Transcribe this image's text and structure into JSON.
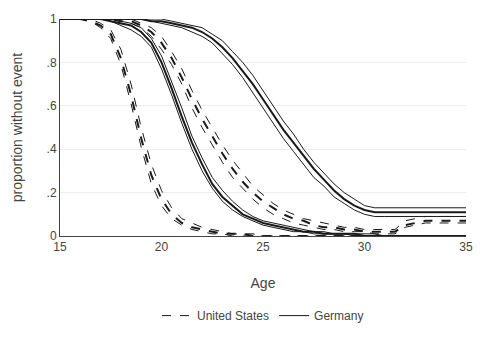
{
  "chart_data": {
    "type": "line",
    "xlabel": "Age",
    "ylabel": "proportion without event",
    "x": [
      15,
      15.5,
      16,
      16.5,
      17,
      17.5,
      18,
      18.5,
      19,
      19.5,
      20,
      20.5,
      21,
      21.5,
      22,
      22.5,
      23,
      23.5,
      24,
      24.5,
      25,
      25.5,
      26,
      26.5,
      27,
      27.5,
      28,
      28.5,
      29,
      29.5,
      30,
      30.5,
      31,
      31.5,
      32,
      32.5,
      33,
      33.5,
      34,
      34.5,
      35
    ],
    "series": [
      {
        "name": "United States",
        "color": "#1a1a1a",
        "line_style": "dashed",
        "values": [
          1.0,
          1.0,
          1.0,
          1.0,
          0.98,
          0.95,
          0.86,
          0.7,
          0.5,
          0.33,
          0.21,
          0.13,
          0.08,
          0.06,
          0.04,
          0.03,
          0.02,
          0.01,
          0.01,
          0.01,
          0.0,
          0.0,
          0.0,
          0.0,
          0.0,
          0.0,
          0.0,
          0.0,
          0.0,
          0.0,
          0.0,
          0.0,
          0.0,
          0.0,
          0.0,
          0.0,
          0.0,
          0.0,
          0.0,
          0.0,
          0.0
        ]
      },
      {
        "name": "United States",
        "color": "#1a1a1a",
        "line_style": "dashed",
        "values": [
          1.0,
          1.0,
          1.0,
          0.99,
          0.97,
          0.93,
          0.82,
          0.65,
          0.45,
          0.28,
          0.17,
          0.1,
          0.06,
          0.04,
          0.03,
          0.02,
          0.01,
          0.01,
          0.01,
          0.0,
          0.0,
          0.0,
          0.0,
          0.0,
          0.0,
          0.0,
          0.0,
          0.0,
          0.0,
          0.0,
          0.0,
          0.0,
          0.0,
          0.0,
          0.0,
          0.0,
          0.0,
          0.0,
          0.0,
          0.0,
          0.0
        ]
      },
      {
        "name": "United States",
        "color": "#1a1a1a",
        "line_style": "dashed",
        "values": [
          1.0,
          1.0,
          1.0,
          0.99,
          0.96,
          0.91,
          0.79,
          0.61,
          0.41,
          0.24,
          0.14,
          0.08,
          0.05,
          0.03,
          0.02,
          0.01,
          0.01,
          0.0,
          0.0,
          0.0,
          0.0,
          0.0,
          0.0,
          0.0,
          0.0,
          0.0,
          0.0,
          0.0,
          0.0,
          0.0,
          0.0,
          0.0,
          0.0,
          0.0,
          0.0,
          0.0,
          0.0,
          0.0,
          0.0,
          0.0,
          0.0
        ]
      },
      {
        "name": "United States",
        "color": "#1a1a1a",
        "line_style": "dashed",
        "values": [
          1.0,
          1.0,
          1.0,
          1.0,
          1.0,
          1.0,
          1.0,
          1.0,
          0.98,
          0.96,
          0.92,
          0.85,
          0.77,
          0.67,
          0.58,
          0.5,
          0.42,
          0.35,
          0.29,
          0.23,
          0.19,
          0.15,
          0.12,
          0.1,
          0.08,
          0.07,
          0.06,
          0.05,
          0.04,
          0.04,
          0.03,
          0.03,
          0.03,
          0.03,
          0.07,
          0.08,
          0.09,
          0.09,
          0.09,
          0.09,
          0.09
        ]
      },
      {
        "name": "United States",
        "color": "#1a1a1a",
        "line_style": "dashed",
        "values": [
          1.0,
          1.0,
          1.0,
          1.0,
          1.0,
          1.0,
          0.99,
          0.99,
          0.97,
          0.94,
          0.89,
          0.82,
          0.73,
          0.63,
          0.54,
          0.46,
          0.38,
          0.31,
          0.25,
          0.2,
          0.16,
          0.13,
          0.1,
          0.08,
          0.07,
          0.05,
          0.04,
          0.04,
          0.03,
          0.03,
          0.02,
          0.02,
          0.02,
          0.02,
          0.05,
          0.06,
          0.07,
          0.07,
          0.07,
          0.07,
          0.07
        ]
      },
      {
        "name": "United States",
        "color": "#1a1a1a",
        "line_style": "dashed",
        "values": [
          1.0,
          1.0,
          1.0,
          1.0,
          1.0,
          1.0,
          0.99,
          0.98,
          0.96,
          0.92,
          0.86,
          0.79,
          0.7,
          0.59,
          0.5,
          0.42,
          0.34,
          0.27,
          0.22,
          0.17,
          0.13,
          0.1,
          0.08,
          0.06,
          0.05,
          0.04,
          0.03,
          0.03,
          0.02,
          0.02,
          0.02,
          0.01,
          0.01,
          0.01,
          0.04,
          0.05,
          0.06,
          0.06,
          0.06,
          0.06,
          0.06
        ]
      },
      {
        "name": "Germany",
        "color": "#1a1a1a",
        "line_style": "solid",
        "values": [
          1.0,
          1.0,
          1.0,
          1.0,
          1.0,
          1.0,
          0.99,
          0.98,
          0.96,
          0.91,
          0.83,
          0.71,
          0.59,
          0.46,
          0.36,
          0.27,
          0.21,
          0.16,
          0.12,
          0.09,
          0.07,
          0.06,
          0.05,
          0.04,
          0.03,
          0.02,
          0.02,
          0.01,
          0.01,
          0.01,
          0.01,
          0.01,
          0.0,
          0.0,
          0.0,
          0.0,
          0.0,
          0.0,
          0.0,
          0.0,
          0.0
        ]
      },
      {
        "name": "Germany",
        "color": "#1a1a1a",
        "line_style": "solid",
        "values": [
          1.0,
          1.0,
          1.0,
          1.0,
          1.0,
          0.99,
          0.98,
          0.97,
          0.94,
          0.89,
          0.8,
          0.68,
          0.55,
          0.43,
          0.33,
          0.24,
          0.18,
          0.14,
          0.1,
          0.08,
          0.06,
          0.05,
          0.04,
          0.03,
          0.02,
          0.02,
          0.01,
          0.01,
          0.01,
          0.01,
          0.0,
          0.0,
          0.0,
          0.0,
          0.0,
          0.0,
          0.0,
          0.0,
          0.0,
          0.0,
          0.0
        ]
      },
      {
        "name": "Germany",
        "color": "#1a1a1a",
        "line_style": "solid",
        "values": [
          1.0,
          1.0,
          1.0,
          1.0,
          1.0,
          0.99,
          0.97,
          0.95,
          0.92,
          0.87,
          0.77,
          0.65,
          0.52,
          0.4,
          0.3,
          0.22,
          0.16,
          0.12,
          0.09,
          0.07,
          0.05,
          0.04,
          0.03,
          0.02,
          0.02,
          0.01,
          0.01,
          0.01,
          0.01,
          0.0,
          0.0,
          0.0,
          0.0,
          0.0,
          0.0,
          0.0,
          0.0,
          0.0,
          0.0,
          0.0,
          0.0
        ]
      },
      {
        "name": "Germany",
        "color": "#1a1a1a",
        "line_style": "solid",
        "values": [
          1.0,
          1.0,
          1.0,
          1.0,
          1.0,
          1.0,
          1.0,
          1.0,
          1.0,
          1.0,
          1.0,
          0.99,
          0.98,
          0.97,
          0.96,
          0.93,
          0.9,
          0.85,
          0.8,
          0.74,
          0.67,
          0.6,
          0.53,
          0.47,
          0.4,
          0.34,
          0.29,
          0.24,
          0.2,
          0.17,
          0.14,
          0.13,
          0.13,
          0.13,
          0.13,
          0.13,
          0.13,
          0.13,
          0.13,
          0.13,
          0.13
        ]
      },
      {
        "name": "Germany",
        "color": "#1a1a1a",
        "line_style": "solid",
        "values": [
          1.0,
          1.0,
          1.0,
          1.0,
          1.0,
          1.0,
          1.0,
          1.0,
          1.0,
          0.99,
          0.99,
          0.98,
          0.97,
          0.96,
          0.94,
          0.91,
          0.87,
          0.82,
          0.76,
          0.7,
          0.63,
          0.56,
          0.49,
          0.43,
          0.37,
          0.31,
          0.26,
          0.21,
          0.17,
          0.14,
          0.12,
          0.11,
          0.11,
          0.11,
          0.11,
          0.11,
          0.11,
          0.11,
          0.11,
          0.11,
          0.11
        ]
      },
      {
        "name": "Germany",
        "color": "#1a1a1a",
        "line_style": "solid",
        "values": [
          1.0,
          1.0,
          1.0,
          1.0,
          1.0,
          1.0,
          1.0,
          1.0,
          1.0,
          0.99,
          0.98,
          0.97,
          0.96,
          0.94,
          0.92,
          0.89,
          0.84,
          0.79,
          0.73,
          0.66,
          0.59,
          0.52,
          0.45,
          0.39,
          0.33,
          0.27,
          0.23,
          0.18,
          0.15,
          0.12,
          0.1,
          0.09,
          0.09,
          0.09,
          0.09,
          0.09,
          0.09,
          0.09,
          0.09,
          0.09,
          0.09
        ]
      }
    ],
    "xlim": [
      15,
      35
    ],
    "ylim": [
      0,
      1.0
    ],
    "xticks": [
      15,
      20,
      25,
      30,
      35
    ],
    "yticks": [
      0,
      {
        "value": 0.2,
        "label": ".2"
      },
      {
        "value": 0.4,
        "label": ".4"
      },
      {
        "value": 0.6,
        "label": ".6"
      },
      {
        "value": 0.8,
        "label": ".8"
      },
      1.0
    ],
    "grid": "y",
    "legend": "bottom"
  }
}
